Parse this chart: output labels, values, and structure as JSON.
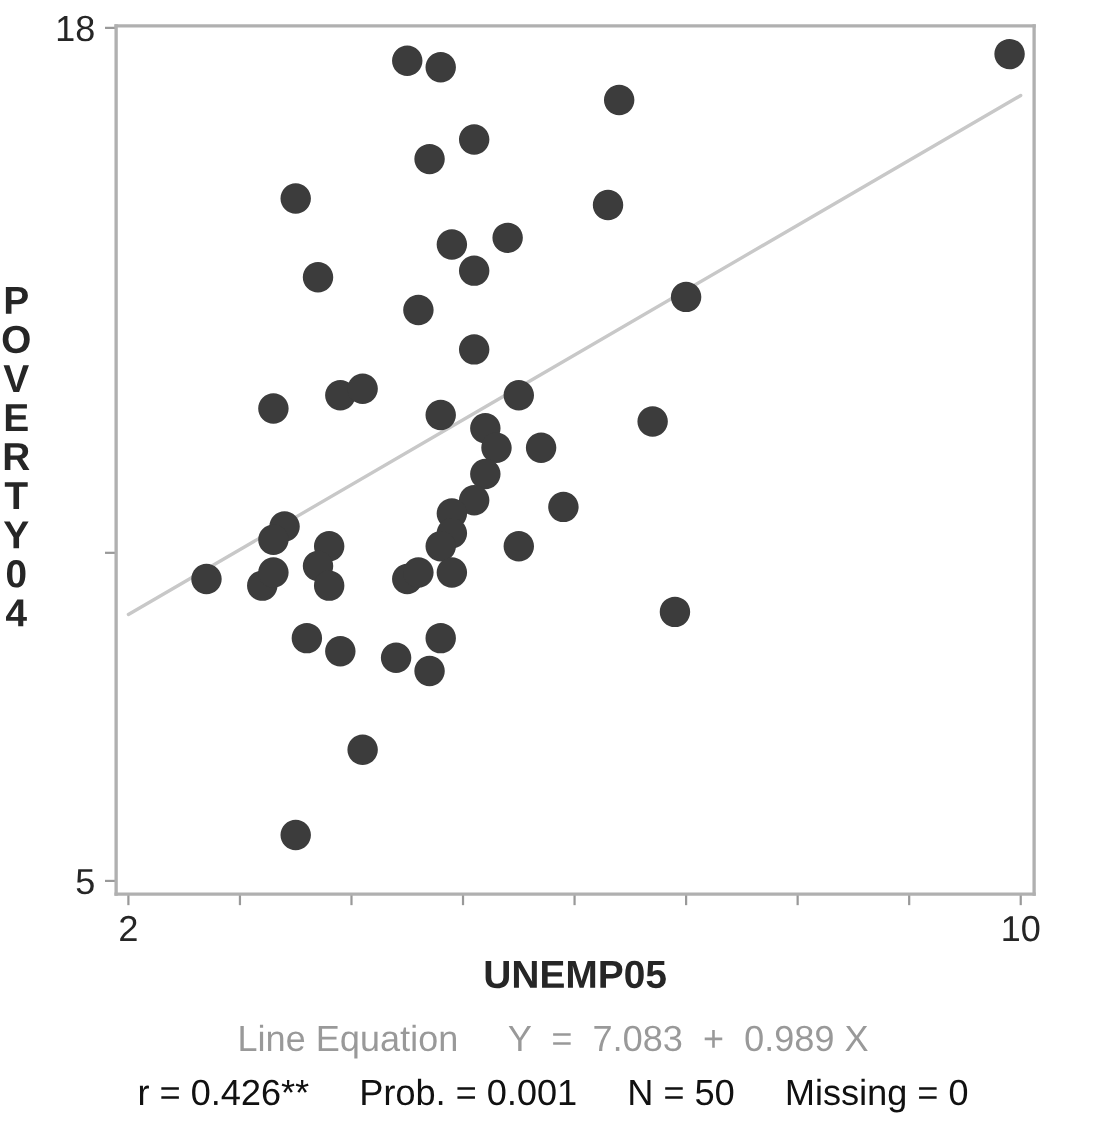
{
  "chart_data": {
    "type": "scatter",
    "xlabel": "UNEMP05",
    "ylabel": "POVERTY04",
    "annotations": [
      "Line Equation     Y  =  7.083  +  0.989 X",
      "r = 0.426**     Prob. = 0.001     N = 50     Missing = 0"
    ],
    "series": [
      {
        "color": "#3c3c3c",
        "marker": "circle",
        "x": [
          4.5,
          4.8,
          6.4,
          5.1,
          4.7,
          3.5,
          6.3,
          4.9,
          5.4,
          5.1,
          3.7,
          4.6,
          5.1,
          3.3,
          3.9,
          4.1,
          4.8,
          5.5,
          5.2,
          5.3,
          5.7,
          9.9,
          7.0,
          6.7,
          6.9,
          5.2,
          5.9,
          5.1,
          4.9,
          4.9,
          4.8,
          3.4,
          3.3,
          3.8,
          5.5,
          2.7,
          3.2,
          3.3,
          3.7,
          3.8,
          4.5,
          4.6,
          4.9,
          3.6,
          3.9,
          4.4,
          4.8,
          4.7,
          4.1,
          3.5
        ],
        "values": [
          17.5,
          17.4,
          16.9,
          16.3,
          16.0,
          15.4,
          15.3,
          14.7,
          14.8,
          14.3,
          14.2,
          13.7,
          13.1,
          12.2,
          12.4,
          12.5,
          12.1,
          12.4,
          11.9,
          11.6,
          11.6,
          17.6,
          13.9,
          12.0,
          9.1,
          11.2,
          10.7,
          10.8,
          10.6,
          10.3,
          10.1,
          10.4,
          10.2,
          10.1,
          10.1,
          9.6,
          9.5,
          9.7,
          9.8,
          9.5,
          9.6,
          9.7,
          9.7,
          8.7,
          8.5,
          8.4,
          8.7,
          8.2,
          7.0,
          5.7
        ]
      },
      {
        "type": "line",
        "color": "#c8c8c8",
        "line_style": "solid",
        "x": [
          2,
          10
        ],
        "values": [
          9.06,
          16.97
        ]
      }
    ],
    "xlim": [
      1.89,
      10.12
    ],
    "ylim": [
      4.8,
      18.03
    ],
    "xticks": [
      2,
      {
        "value": 3,
        "label": null
      },
      {
        "value": 4,
        "label": null
      },
      {
        "value": 5,
        "label": null
      },
      {
        "value": 6,
        "label": null
      },
      {
        "value": 7,
        "label": null
      },
      {
        "value": 8,
        "label": null
      },
      {
        "value": 9,
        "label": null
      },
      10
    ],
    "yticks": [
      5,
      {
        "value": 10,
        "label": null
      },
      18
    ],
    "grid": false,
    "legend": false
  }
}
